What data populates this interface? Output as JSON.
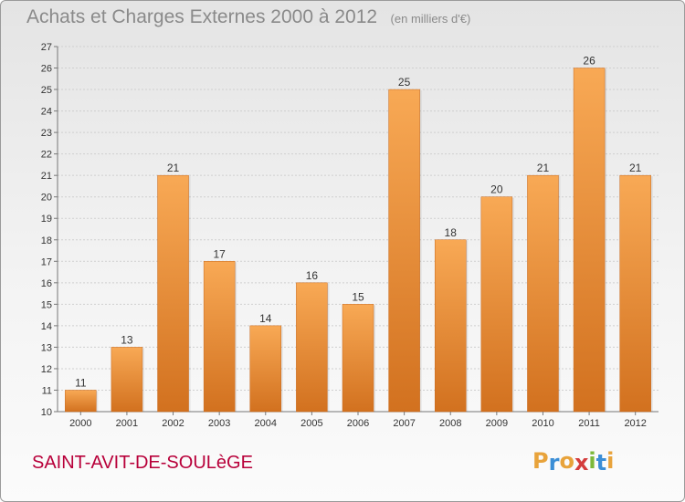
{
  "header": {
    "title": "Achats et Charges Externes 2000 à 2012",
    "unit": "(en milliers d'€)"
  },
  "footer": {
    "town": "SAINT-AVIT-DE-SOULèGE",
    "logo_text": "Proxiti",
    "logo_colors": [
      "#e8a33b",
      "#3b8ed6",
      "#e8a33b",
      "#d43c3c",
      "#7cb83a",
      "#3b8ed6",
      "#e8a33b"
    ]
  },
  "colors": {
    "bar_light": "#f8a955",
    "bar_dark": "#d2711f",
    "grid": "#cfcfcf",
    "axis": "#777777",
    "town": "#b8003a"
  },
  "chart_data": {
    "type": "bar",
    "title": "Achats et Charges Externes 2000 à 2012",
    "subtitle": "(en milliers d'€)",
    "xlabel": "",
    "ylabel": "",
    "categories": [
      "2000",
      "2001",
      "2002",
      "2003",
      "2004",
      "2005",
      "2006",
      "2007",
      "2008",
      "2009",
      "2010",
      "2011",
      "2012"
    ],
    "values": [
      11,
      13,
      21,
      17,
      14,
      16,
      15,
      25,
      18,
      20,
      21,
      26,
      21
    ],
    "ylim": [
      10,
      27
    ],
    "yticks": [
      10,
      11,
      12,
      13,
      14,
      15,
      16,
      17,
      18,
      19,
      20,
      21,
      22,
      23,
      24,
      25,
      26,
      27
    ],
    "grid": true,
    "data_labels": true
  }
}
